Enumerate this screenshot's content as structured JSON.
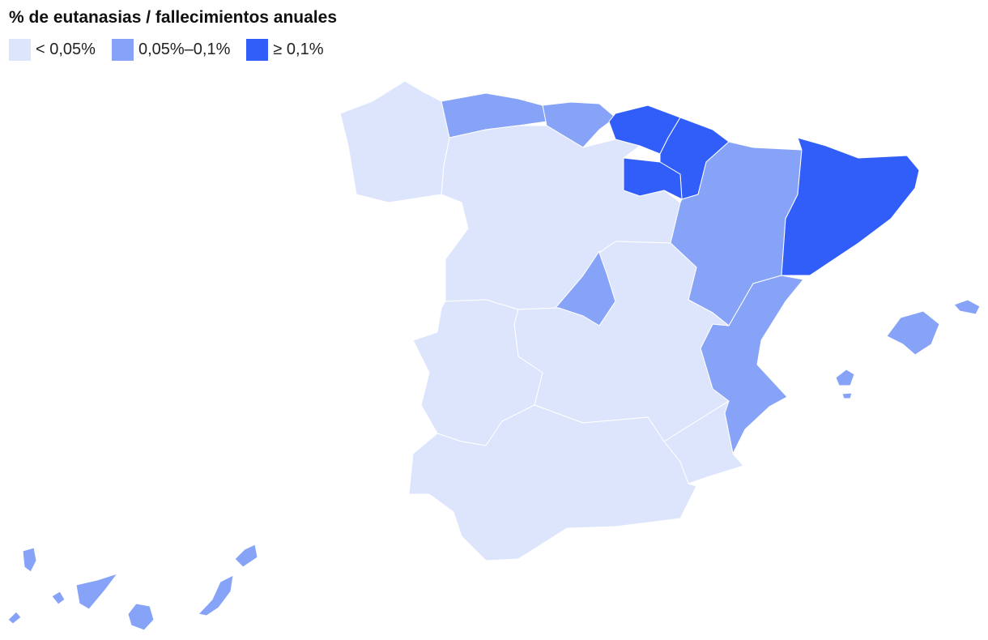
{
  "title": "% de eutanasias / fallecimientos anuales",
  "legend": [
    {
      "label": "< 0,05%",
      "color": "#dde5fd"
    },
    {
      "label": "0,05%–0,1%",
      "color": "#87a3f8"
    },
    {
      "label": "≥ 0,1%",
      "color": "#315ef8"
    }
  ]
}
